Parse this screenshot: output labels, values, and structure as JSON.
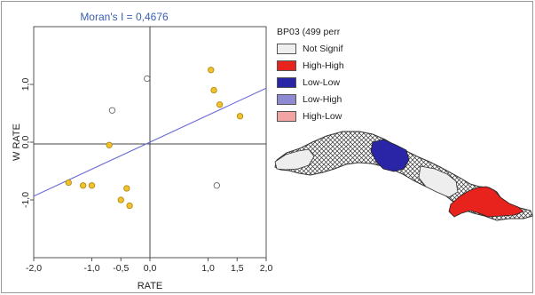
{
  "chart_data": {
    "type": "scatter",
    "title": "Moran's I = 0,4676",
    "xlabel": "RATE",
    "ylabel": "W RATE",
    "xlim": [
      -2.0,
      2.0
    ],
    "ylim": [
      -2.0,
      2.0
    ],
    "x_ticks": [
      "-2,0",
      "-1,0",
      "-0,5",
      "0,0",
      "1,0",
      "1,5",
      "2,0"
    ],
    "x_tick_values": [
      -2.0,
      -1.0,
      -0.5,
      0.0,
      1.0,
      1.5,
      2.0
    ],
    "y_ticks": [
      "-1,0",
      "0,0",
      "1,0"
    ],
    "y_tick_values": [
      -1.0,
      0.0,
      1.0
    ],
    "regression": {
      "slope": 0.4676,
      "intercept": 0.0
    },
    "points": [
      {
        "x": -0.05,
        "y": 1.1,
        "significant": false
      },
      {
        "x": -0.65,
        "y": 0.55,
        "significant": false
      },
      {
        "x": 1.15,
        "y": -0.75,
        "significant": false
      },
      {
        "x": 1.05,
        "y": 1.25,
        "significant": true
      },
      {
        "x": 1.1,
        "y": 0.9,
        "significant": true
      },
      {
        "x": 1.2,
        "y": 0.65,
        "significant": true
      },
      {
        "x": 1.55,
        "y": 0.45,
        "significant": true
      },
      {
        "x": -0.7,
        "y": -0.05,
        "significant": true
      },
      {
        "x": -1.4,
        "y": -0.7,
        "significant": true
      },
      {
        "x": -1.15,
        "y": -0.75,
        "significant": true
      },
      {
        "x": -1.0,
        "y": -0.75,
        "significant": true
      },
      {
        "x": -0.4,
        "y": -0.8,
        "significant": true
      },
      {
        "x": -0.5,
        "y": -1.0,
        "significant": true
      },
      {
        "x": -0.35,
        "y": -1.1,
        "significant": true
      }
    ],
    "colors": {
      "significant_fill": "#f2c12e",
      "significant_stroke": "#b08a10",
      "nonsig_fill": "#ffffff",
      "nonsig_stroke": "#666666",
      "regression_line": "#6a6ad8",
      "title": "#3a5fb0"
    },
    "grid": false
  },
  "legend": {
    "title": "BP03 (499 perr",
    "items": [
      {
        "label": "Not Signif",
        "color": "#eeeeee"
      },
      {
        "label": "High-High",
        "color": "#e8231e"
      },
      {
        "label": "Low-Low",
        "color": "#2a24a6"
      },
      {
        "label": "Low-High",
        "color": "#8e8ad2"
      },
      {
        "label": "High-Low",
        "color": "#f2a3a3"
      }
    ]
  },
  "map": {
    "colors": {
      "not_signif": "#eeeeee",
      "high_high": "#e8231e",
      "low_low": "#2a24a6",
      "outline": "#333333"
    }
  }
}
